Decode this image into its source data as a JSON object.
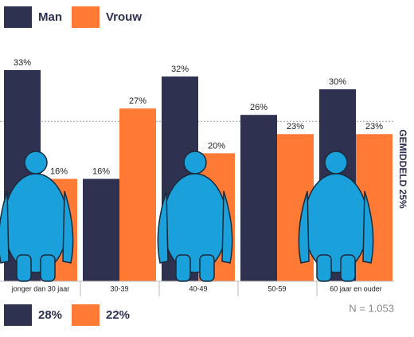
{
  "chart_data": {
    "type": "bar",
    "categories": [
      "jonger dan 30 jaar",
      "30-39",
      "40-49",
      "50-59",
      "60 jaar en ouder"
    ],
    "series": [
      {
        "name": "Man",
        "color": "#2e3150",
        "values": [
          33,
          16,
          32,
          26,
          30
        ],
        "value_labels": [
          "33%",
          "16%",
          "32%",
          "26%",
          "30%"
        ],
        "total": 28,
        "total_label": "28%"
      },
      {
        "name": "Vrouw",
        "color": "#ff7a35",
        "values": [
          16,
          27,
          20,
          23,
          23
        ],
        "value_labels": [
          "16%",
          "27%",
          "20%",
          "23%",
          "23%"
        ],
        "total": 22,
        "total_label": "22%"
      }
    ],
    "average": {
      "value": 25,
      "label": "GEMIDDELD 25%"
    },
    "note": "N = 1.053",
    "ylim": [
      0,
      33
    ]
  }
}
